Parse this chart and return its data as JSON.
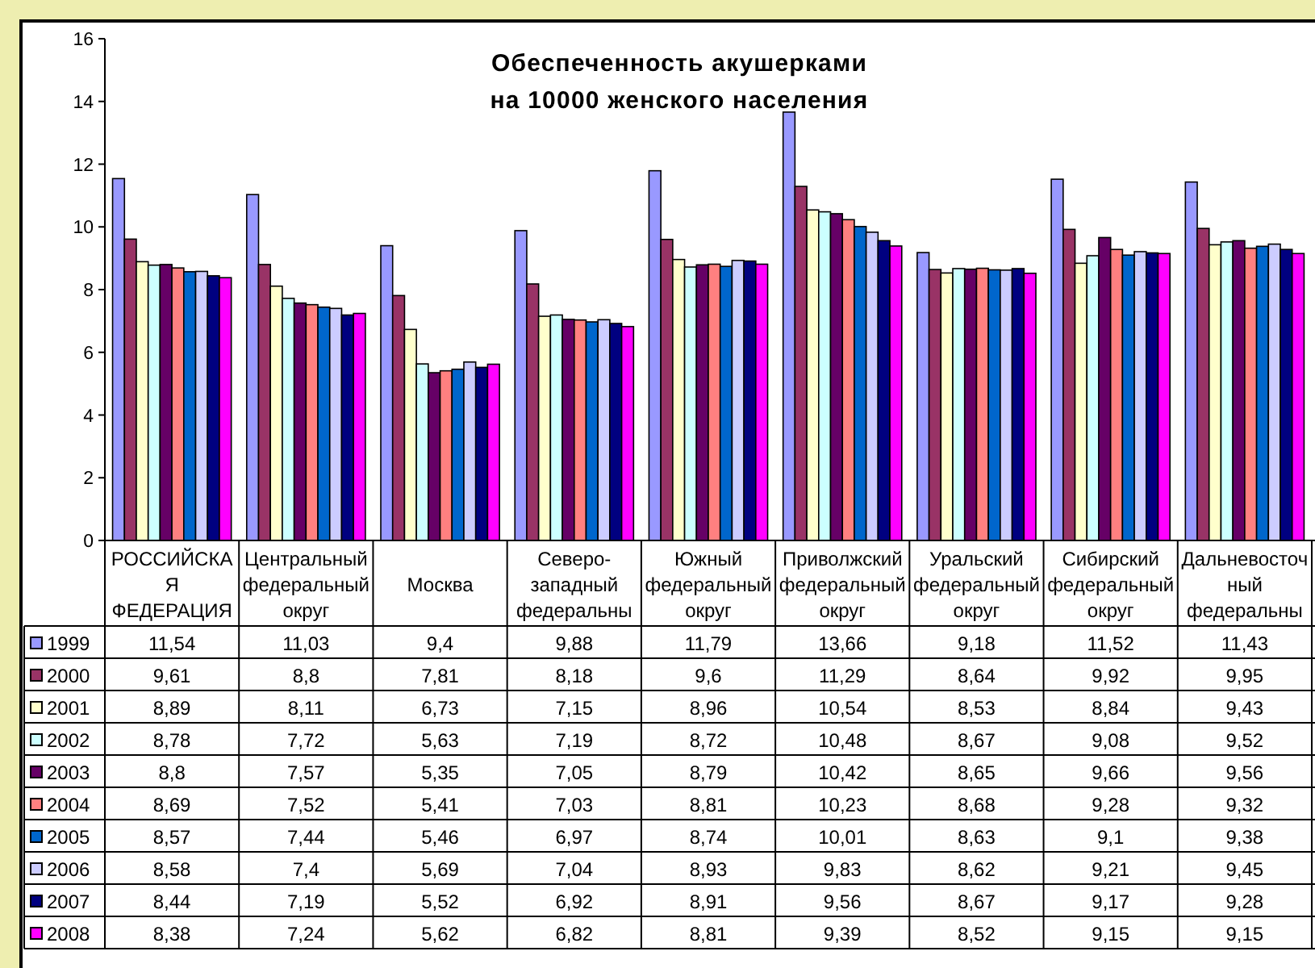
{
  "chart_data": {
    "type": "bar",
    "title": "Обеспеченность акушерками\nна 10000 женского населения",
    "categories": [
      "РОССИЙСКАЯ ФЕДЕРАЦИЯ",
      "Центральный федеральный округ",
      "Москва",
      "Северо-западный федеральны",
      "Южный федеральный округ",
      "Приволжский федеральный округ",
      "Уральский федеральный округ",
      "Сибирский федеральный округ",
      "Дальневосточный федеральны"
    ],
    "series": [
      {
        "name": "1999",
        "color": "#9999ff",
        "values": [
          11.54,
          11.03,
          9.4,
          9.88,
          11.79,
          13.66,
          9.18,
          11.52,
          11.43
        ],
        "value_labels": [
          "11,54",
          "11,03",
          "9,4",
          "9,88",
          "11,79",
          "13,66",
          "9,18",
          "11,52",
          "11,43"
        ]
      },
      {
        "name": "2000",
        "color": "#993366",
        "values": [
          9.61,
          8.8,
          7.81,
          8.18,
          9.6,
          11.29,
          8.64,
          9.92,
          9.95
        ],
        "value_labels": [
          "9,61",
          "8,8",
          "7,81",
          "8,18",
          "9,6",
          "11,29",
          "8,64",
          "9,92",
          "9,95"
        ]
      },
      {
        "name": "2001",
        "color": "#ffffcc",
        "values": [
          8.89,
          8.11,
          6.73,
          7.15,
          8.96,
          10.54,
          8.53,
          8.84,
          9.43
        ],
        "value_labels": [
          "8,89",
          "8,11",
          "6,73",
          "7,15",
          "8,96",
          "10,54",
          "8,53",
          "8,84",
          "9,43"
        ]
      },
      {
        "name": "2002",
        "color": "#ccffff",
        "values": [
          8.78,
          7.72,
          5.63,
          7.19,
          8.72,
          10.48,
          8.67,
          9.08,
          9.52
        ],
        "value_labels": [
          "8,78",
          "7,72",
          "5,63",
          "7,19",
          "8,72",
          "10,48",
          "8,67",
          "9,08",
          "9,52"
        ]
      },
      {
        "name": "2003",
        "color": "#660066",
        "values": [
          8.8,
          7.57,
          5.35,
          7.05,
          8.79,
          10.42,
          8.65,
          9.66,
          9.56
        ],
        "value_labels": [
          "8,8",
          "7,57",
          "5,35",
          "7,05",
          "8,79",
          "10,42",
          "8,65",
          "9,66",
          "9,56"
        ]
      },
      {
        "name": "2004",
        "color": "#ff8080",
        "values": [
          8.69,
          7.52,
          5.41,
          7.03,
          8.81,
          10.23,
          8.68,
          9.28,
          9.32
        ],
        "value_labels": [
          "8,69",
          "7,52",
          "5,41",
          "7,03",
          "8,81",
          "10,23",
          "8,68",
          "9,28",
          "9,32"
        ]
      },
      {
        "name": "2005",
        "color": "#0066cc",
        "values": [
          8.57,
          7.44,
          5.46,
          6.97,
          8.74,
          10.01,
          8.63,
          9.1,
          9.38
        ],
        "value_labels": [
          "8,57",
          "7,44",
          "5,46",
          "6,97",
          "8,74",
          "10,01",
          "8,63",
          "9,1",
          "9,38"
        ]
      },
      {
        "name": "2006",
        "color": "#ccccff",
        "values": [
          8.58,
          7.4,
          5.69,
          7.04,
          8.93,
          9.83,
          8.62,
          9.21,
          9.45
        ],
        "value_labels": [
          "8,58",
          "7,4",
          "5,69",
          "7,04",
          "8,93",
          "9,83",
          "8,62",
          "9,21",
          "9,45"
        ]
      },
      {
        "name": "2007",
        "color": "#000080",
        "values": [
          8.44,
          7.19,
          5.52,
          6.92,
          8.91,
          9.56,
          8.67,
          9.17,
          9.28
        ],
        "value_labels": [
          "8,44",
          "7,19",
          "5,52",
          "6,92",
          "8,91",
          "9,56",
          "8,67",
          "9,17",
          "9,28"
        ]
      },
      {
        "name": "2008",
        "color": "#ff00ff",
        "values": [
          8.38,
          7.24,
          5.62,
          6.82,
          8.81,
          9.39,
          8.52,
          9.15,
          9.15
        ],
        "value_labels": [
          "8,38",
          "7,24",
          "5,62",
          "6,82",
          "8,81",
          "9,39",
          "8,52",
          "9,15",
          "9,15"
        ]
      }
    ],
    "ylim": [
      0,
      16
    ],
    "yticks": [
      0,
      2,
      4,
      6,
      8,
      10,
      12,
      14,
      16
    ],
    "legend": "bottom"
  }
}
